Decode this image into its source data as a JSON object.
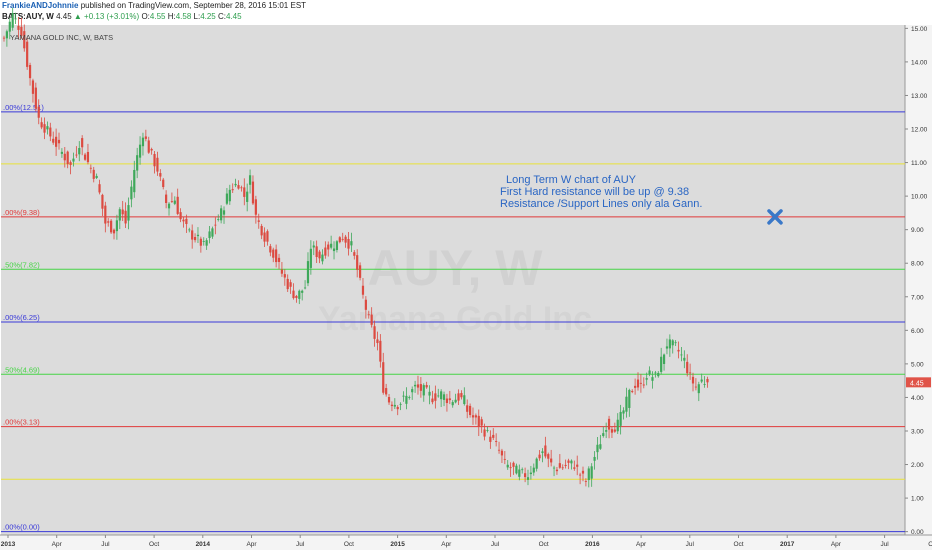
{
  "header": {
    "author": "FrankieANDJohnnie",
    "published": "published on TradingView.com, September 28, 2016 15:01 EST",
    "symbol": "BATS:AUY, W",
    "last": "4.45",
    "change": "▲ +0.13 (+3.01%)",
    "open_label": "O:",
    "open": "4.55",
    "high_label": "H:",
    "high": "4.58",
    "low_label": "L:",
    "low": "4.25",
    "close_label": "C:",
    "close": "4.45"
  },
  "chart_data": {
    "type": "candlestick",
    "title": "YAMANA GOLD INC, W, BATS",
    "watermark": "AUY, W",
    "watermark_sub": "Yamana Gold Inc",
    "x_ticks": [
      "2013",
      "Apr",
      "Jul",
      "Oct",
      "2014",
      "Apr",
      "Jul",
      "Oct",
      "2015",
      "Apr",
      "Jul",
      "Oct",
      "2016",
      "Apr",
      "Jul",
      "Oct",
      "2017",
      "Apr",
      "Jul",
      "Oct"
    ],
    "y_ticks": [
      "0.00",
      "1.00",
      "2.00",
      "3.00",
      "4.00",
      "5.00",
      "6.00",
      "7.00",
      "8.00",
      "9.00",
      "10.00",
      "11.00",
      "12.00",
      "13.00",
      "14.00",
      "15.00"
    ],
    "ylim": [
      -0.1,
      15.1
    ],
    "last_price_badge": "4.45",
    "fib_levels": [
      {
        "label": ".00%(12.51)",
        "value": 12.51,
        "color": "#3a3ad8"
      },
      {
        "label": "",
        "value": 10.96,
        "color": "#e8e23a"
      },
      {
        "label": ".00%(9.38)",
        "value": 9.38,
        "color": "#e03a3a"
      },
      {
        "label": ".50%(7.82)",
        "value": 7.82,
        "color": "#46d446"
      },
      {
        "label": ".00%(6.25)",
        "value": 6.25,
        "color": "#3a3ad8"
      },
      {
        "label": ".50%(4.69)",
        "value": 4.69,
        "color": "#46d446"
      },
      {
        "label": ".00%(3.13)",
        "value": 3.13,
        "color": "#e03a3a"
      },
      {
        "label": "",
        "value": 1.56,
        "color": "#e8e23a"
      },
      {
        "label": ".00%(0.00)",
        "value": 0.0,
        "color": "#3a3ad8"
      }
    ],
    "annotation": {
      "lines": [
        "Long Term W chart of AUY",
        "First Hard resistance will be up @ 9.38",
        "Resistance /Support Lines only ala Gann."
      ],
      "color": "#2a66c4"
    },
    "marker_icon": "x-mark-icon",
    "marker_price": 9.38,
    "bull_color": "#3ea85a",
    "bear_color": "#dc4a40",
    "anchors": [
      [
        0,
        14.7
      ],
      [
        3,
        15.4
      ],
      [
        6,
        14.9
      ],
      [
        9,
        13.5
      ],
      [
        12,
        12.3
      ],
      [
        16,
        11.8
      ],
      [
        20,
        11.3
      ],
      [
        23,
        10.9
      ],
      [
        26,
        11.6
      ],
      [
        29,
        11.0
      ],
      [
        32,
        10.5
      ],
      [
        35,
        9.2
      ],
      [
        38,
        9.0
      ],
      [
        40,
        9.6
      ],
      [
        42,
        9.2
      ],
      [
        45,
        10.8
      ],
      [
        48,
        11.9
      ],
      [
        50,
        11.4
      ],
      [
        53,
        10.8
      ],
      [
        56,
        9.8
      ],
      [
        59,
        9.9
      ],
      [
        61,
        9.3
      ],
      [
        64,
        8.9
      ],
      [
        67,
        8.7
      ],
      [
        69,
        8.5
      ],
      [
        72,
        9.0
      ],
      [
        75,
        9.5
      ],
      [
        78,
        10.2
      ],
      [
        81,
        10.4
      ],
      [
        83,
        10.0
      ],
      [
        85,
        10.5
      ],
      [
        87,
        9.4
      ],
      [
        90,
        8.8
      ],
      [
        93,
        8.3
      ],
      [
        96,
        7.7
      ],
      [
        99,
        7.2
      ],
      [
        101,
        7.0
      ],
      [
        104,
        7.3
      ],
      [
        106,
        8.5
      ],
      [
        109,
        8.2
      ],
      [
        112,
        8.5
      ],
      [
        115,
        8.6
      ],
      [
        117,
        8.8
      ],
      [
        120,
        8.5
      ],
      [
        122,
        7.8
      ],
      [
        124,
        7.0
      ],
      [
        126,
        6.3
      ],
      [
        128,
        5.8
      ],
      [
        129,
        5.6
      ],
      [
        131,
        4.3
      ],
      [
        133,
        3.9
      ],
      [
        136,
        3.8
      ],
      [
        139,
        4.0
      ],
      [
        142,
        4.3
      ],
      [
        145,
        4.2
      ],
      [
        148,
        4.0
      ],
      [
        151,
        4.1
      ],
      [
        154,
        3.9
      ],
      [
        157,
        4.0
      ],
      [
        159,
        3.9
      ],
      [
        160,
        3.6
      ],
      [
        163,
        3.3
      ],
      [
        166,
        3.0
      ],
      [
        169,
        2.7
      ],
      [
        171,
        2.4
      ],
      [
        173,
        2.0
      ],
      [
        175,
        1.9
      ],
      [
        177,
        1.8
      ],
      [
        179,
        1.7
      ],
      [
        181,
        1.7
      ],
      [
        183,
        2.0
      ],
      [
        186,
        2.4
      ],
      [
        188,
        2.1
      ],
      [
        190,
        1.9
      ],
      [
        192,
        1.9
      ],
      [
        195,
        2.0
      ],
      [
        197,
        2.0
      ],
      [
        199,
        1.7
      ],
      [
        201,
        1.5
      ],
      [
        203,
        2.0
      ],
      [
        206,
        2.7
      ],
      [
        208,
        3.2
      ],
      [
        210,
        3.1
      ],
      [
        212,
        3.2
      ],
      [
        214,
        3.6
      ],
      [
        216,
        4.1
      ],
      [
        218,
        4.4
      ],
      [
        220,
        4.3
      ],
      [
        222,
        4.7
      ],
      [
        225,
        4.6
      ],
      [
        227,
        5.1
      ],
      [
        229,
        5.6
      ],
      [
        232,
        5.5
      ],
      [
        235,
        5.1
      ],
      [
        237,
        4.6
      ],
      [
        239,
        4.3
      ],
      [
        241,
        4.5
      ],
      [
        243,
        4.45
      ]
    ]
  }
}
